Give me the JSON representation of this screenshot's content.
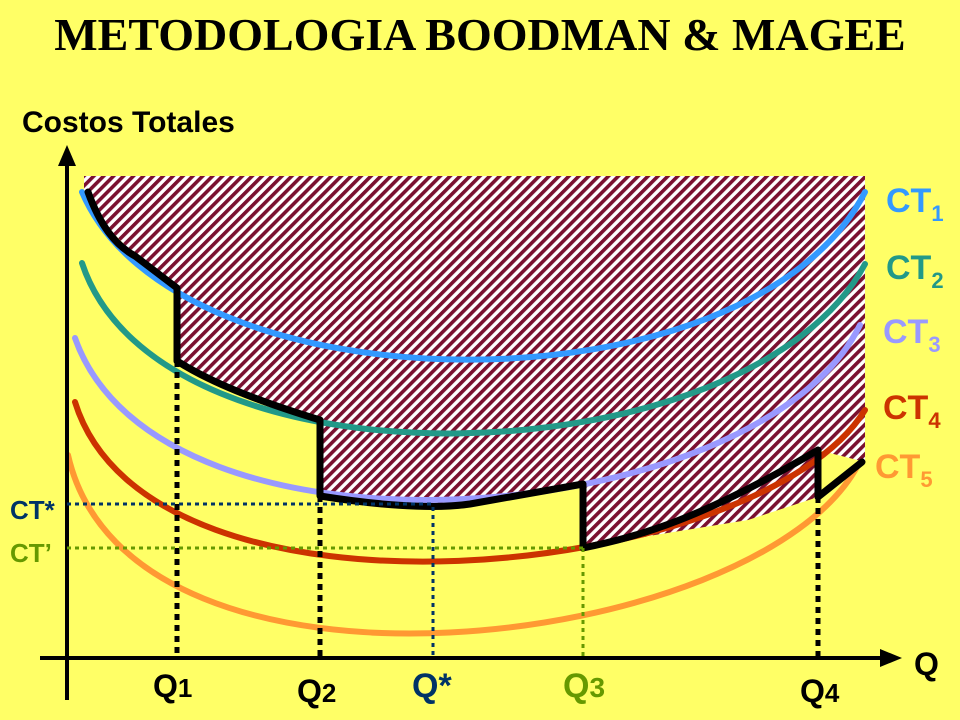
{
  "title": "METODOLOGIA BOODMAN & MAGEE",
  "y_axis_label": "Costos Totales",
  "x_axis_label": "Q",
  "colors": {
    "background": "#FFFF66",
    "ct1": "#3399FF",
    "ct2": "#229988",
    "ct3": "#9999FF",
    "ct4": "#CC3300",
    "ct5": "#FF9933",
    "hatch": "#7A1030",
    "envelope": "#000000",
    "ct_star": "#003366",
    "ct_prime": "#669900"
  },
  "curves": [
    {
      "id": "ct1",
      "base": "CT",
      "sub": "1"
    },
    {
      "id": "ct2",
      "base": "CT",
      "sub": "2"
    },
    {
      "id": "ct3",
      "base": "CT",
      "sub": "3"
    },
    {
      "id": "ct4",
      "base": "CT",
      "sub": "4"
    },
    {
      "id": "ct5",
      "base": "CT",
      "sub": "5"
    }
  ],
  "cost_labels": {
    "ct_star": "CT*",
    "ct_prime": "CT’"
  },
  "q_labels": [
    {
      "id": "q1",
      "base": "Q",
      "sub": "1"
    },
    {
      "id": "q2",
      "base": "Q",
      "sub": "2"
    },
    {
      "id": "qstar",
      "base": "Q*",
      "sub": ""
    },
    {
      "id": "q3",
      "base": "Q",
      "sub": "3"
    },
    {
      "id": "q4",
      "base": "Q",
      "sub": "4"
    }
  ]
}
